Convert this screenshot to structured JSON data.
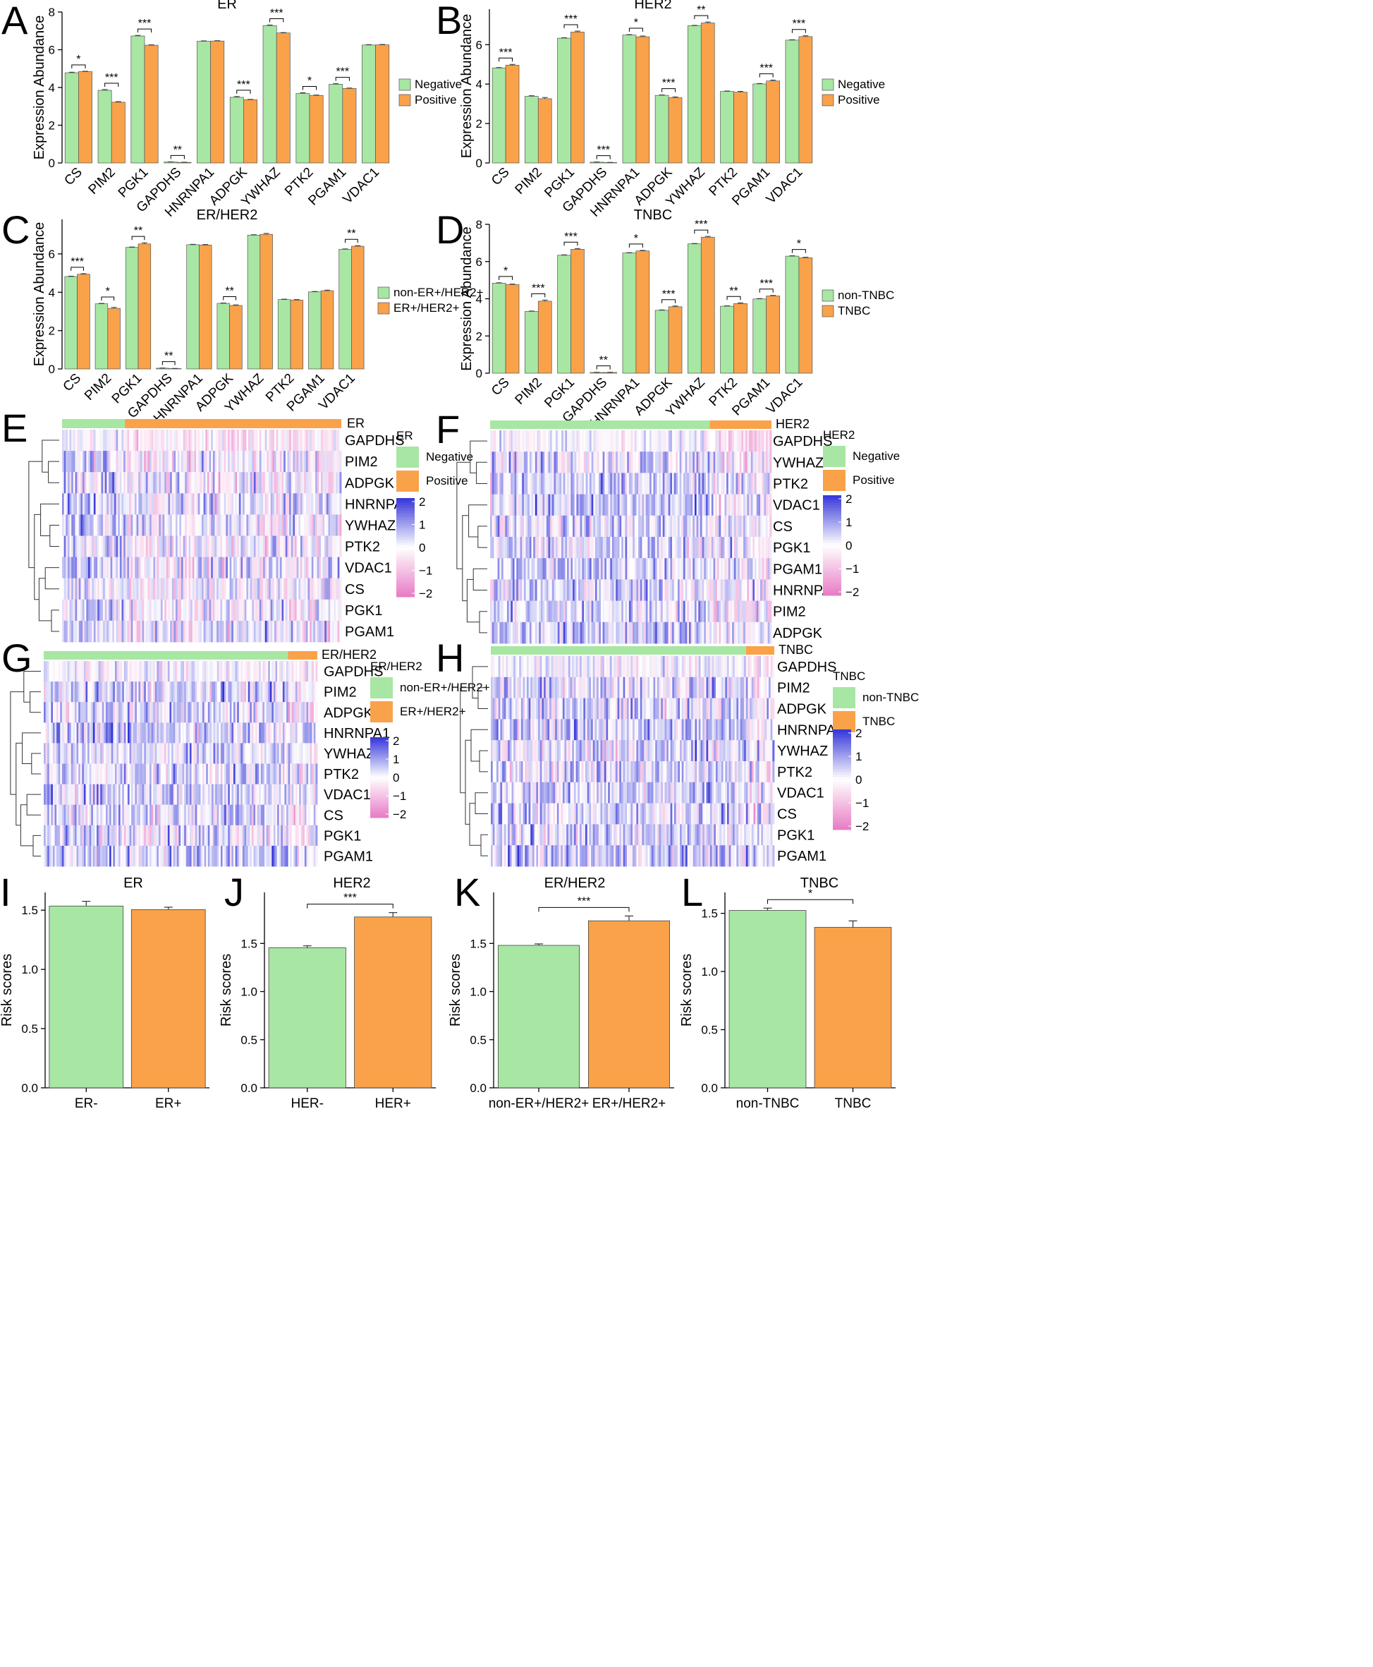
{
  "colors": {
    "negative": "#a8e6a3",
    "positive": "#f9a24a",
    "heat_high": "#3434d9",
    "heat_mid": "#ffffff",
    "heat_low": "#e77bc5",
    "axis": "#000000"
  },
  "genes": [
    "CS",
    "PIM2",
    "PGK1",
    "GAPDHS",
    "HNRNPA1",
    "ADPGK",
    "YWHAZ",
    "PTK2",
    "PGAM1",
    "VDAC1"
  ],
  "chart_data": [
    {
      "id": "A",
      "type": "bar",
      "title": "ER",
      "ylabel": "Expression Abundance",
      "ylim": [
        0,
        8
      ],
      "yticks": [
        0,
        2,
        4,
        6,
        8
      ],
      "categories": [
        "CS",
        "PIM2",
        "PGK1",
        "GAPDHS",
        "HNRNPA1",
        "ADPGK",
        "YWHAZ",
        "PTK2",
        "PGAM1",
        "VDAC1"
      ],
      "series": [
        {
          "name": "Negative",
          "values": [
            4.78,
            3.85,
            6.73,
            0.05,
            6.45,
            3.48,
            7.28,
            3.68,
            4.17,
            6.25
          ],
          "errors": [
            0.03,
            0.04,
            0.03,
            0.01,
            0.02,
            0.04,
            0.03,
            0.04,
            0.03,
            0.02
          ]
        },
        {
          "name": "Positive",
          "values": [
            4.84,
            3.22,
            6.24,
            0.03,
            6.46,
            3.35,
            6.89,
            3.58,
            3.95,
            6.26
          ],
          "errors": [
            0.02,
            0.03,
            0.02,
            0.01,
            0.02,
            0.02,
            0.02,
            0.02,
            0.02,
            0.02
          ]
        }
      ],
      "significance": [
        "*",
        "***",
        "***",
        "**",
        "",
        "***",
        "***",
        "*",
        "***",
        ""
      ],
      "legend": [
        "Negative",
        "Positive"
      ]
    },
    {
      "id": "B",
      "type": "bar",
      "title": "HER2",
      "ylabel": "Expression Abundance",
      "ylim": [
        0,
        7.8
      ],
      "yticks": [
        0,
        2,
        4,
        6
      ],
      "categories": [
        "CS",
        "PIM2",
        "PGK1",
        "GAPDHS",
        "HNRNPA1",
        "ADPGK",
        "YWHAZ",
        "PTK2",
        "PGAM1",
        "VDAC1"
      ],
      "series": [
        {
          "name": "Negative",
          "values": [
            4.82,
            3.38,
            6.33,
            0.04,
            6.49,
            3.43,
            6.96,
            3.63,
            4.01,
            6.23
          ],
          "errors": [
            0.02,
            0.03,
            0.02,
            0.01,
            0.02,
            0.02,
            0.02,
            0.02,
            0.02,
            0.02
          ]
        },
        {
          "name": "Positive",
          "values": [
            4.96,
            3.26,
            6.64,
            0.02,
            6.4,
            3.31,
            7.1,
            3.59,
            4.16,
            6.41
          ],
          "errors": [
            0.04,
            0.06,
            0.05,
            0.01,
            0.04,
            0.04,
            0.05,
            0.04,
            0.04,
            0.04
          ]
        }
      ],
      "significance": [
        "***",
        "",
        "***",
        "***",
        "*",
        "***",
        "**",
        "",
        "***",
        "***"
      ],
      "legend": [
        "Negative",
        "Positive"
      ]
    },
    {
      "id": "C",
      "type": "bar",
      "title": "ER/HER2",
      "ylabel": "Expression Abundance",
      "ylim": [
        0,
        7.8
      ],
      "yticks": [
        0,
        2,
        4,
        6
      ],
      "categories": [
        "CS",
        "PIM2",
        "PGK1",
        "GAPDHS",
        "HNRNPA1",
        "ADPGK",
        "YWHAZ",
        "PTK2",
        "PGAM1",
        "VDAC1"
      ],
      "series": [
        {
          "name": "non-ER+/HER2+",
          "values": [
            4.82,
            3.4,
            6.34,
            0.04,
            6.48,
            3.42,
            6.98,
            3.62,
            4.02,
            6.24
          ],
          "errors": [
            0.02,
            0.02,
            0.02,
            0.01,
            0.02,
            0.02,
            0.02,
            0.02,
            0.02,
            0.02
          ]
        },
        {
          "name": "ER+/HER2+",
          "values": [
            4.94,
            3.16,
            6.52,
            0.02,
            6.46,
            3.31,
            7.02,
            3.59,
            4.08,
            6.4
          ],
          "errors": [
            0.03,
            0.05,
            0.06,
            0.01,
            0.03,
            0.03,
            0.05,
            0.03,
            0.03,
            0.03
          ]
        }
      ],
      "significance": [
        "***",
        "*",
        "**",
        "**",
        "",
        "**",
        "",
        "",
        "",
        "**"
      ],
      "legend": [
        "non-ER+/HER2+",
        "ER+/HER2+"
      ]
    },
    {
      "id": "D",
      "type": "bar",
      "title": "TNBC",
      "ylabel": "Expression Abundance",
      "ylim": [
        0,
        8
      ],
      "yticks": [
        0,
        2,
        4,
        6,
        8
      ],
      "categories": [
        "CS",
        "PIM2",
        "PGK1",
        "GAPDHS",
        "HNRNPA1",
        "ADPGK",
        "YWHAZ",
        "PTK2",
        "PGAM1",
        "VDAC1"
      ],
      "series": [
        {
          "name": "non-TNBC",
          "values": [
            4.84,
            3.32,
            6.34,
            0.04,
            6.46,
            3.38,
            6.95,
            3.6,
            3.99,
            6.29
          ],
          "errors": [
            0.02,
            0.02,
            0.02,
            0.01,
            0.02,
            0.02,
            0.02,
            0.02,
            0.02,
            0.02
          ]
        },
        {
          "name": "TNBC",
          "values": [
            4.76,
            3.87,
            6.66,
            0.04,
            6.57,
            3.57,
            7.31,
            3.74,
            4.15,
            6.2
          ],
          "errors": [
            0.03,
            0.06,
            0.04,
            0.01,
            0.03,
            0.04,
            0.04,
            0.04,
            0.03,
            0.03
          ]
        }
      ],
      "significance": [
        "*",
        "***",
        "***",
        "**",
        "*",
        "***",
        "***",
        "**",
        "***",
        "*"
      ],
      "legend": [
        "non-TNBC",
        "TNBC"
      ]
    },
    {
      "id": "E",
      "type": "heatmap",
      "title": "ER",
      "annotation_label": "ER",
      "legend_title": "ER",
      "groups": [
        "Negative",
        "Positive"
      ],
      "group_split": 0.225,
      "rows": [
        "GAPDHS",
        "PIM2",
        "ADPGK",
        "HNRNPA1",
        "YWHAZ",
        "PTK2",
        "VDAC1",
        "CS",
        "PGK1",
        "PGAM1"
      ],
      "scale_ticks": [
        "2",
        "1",
        "0",
        "−1",
        "−2"
      ]
    },
    {
      "id": "F",
      "type": "heatmap",
      "title": "HER2",
      "annotation_label": "HER2",
      "legend_title": "HER2",
      "groups": [
        "Negative",
        "Positive"
      ],
      "group_split": 0.78,
      "rows": [
        "GAPDHS",
        "YWHAZ",
        "PTK2",
        "VDAC1",
        "CS",
        "PGK1",
        "PGAM1",
        "HNRNPA1",
        "PIM2",
        "ADPGK"
      ],
      "scale_ticks": [
        "2",
        "1",
        "0",
        "−1",
        "−2"
      ]
    },
    {
      "id": "G",
      "type": "heatmap",
      "title": "ER/HER2",
      "annotation_label": "ER/HER2",
      "legend_title": "ER/HER2",
      "groups": [
        "non-ER+/HER2+",
        "ER+/HER2+"
      ],
      "group_split": 0.893,
      "rows": [
        "GAPDHS",
        "PIM2",
        "ADPGK",
        "HNRNPA1",
        "YWHAZ",
        "PTK2",
        "VDAC1",
        "CS",
        "PGK1",
        "PGAM1"
      ],
      "scale_ticks": [
        "2",
        "1",
        "0",
        "−1",
        "−2"
      ]
    },
    {
      "id": "H",
      "type": "heatmap",
      "title": "TNBC",
      "annotation_label": "TNBC",
      "legend_title": "TNBC",
      "groups": [
        "non-TNBC",
        "TNBC"
      ],
      "group_split": 0.9,
      "rows": [
        "GAPDHS",
        "PIM2",
        "ADPGK",
        "HNRNPA1",
        "YWHAZ",
        "PTK2",
        "VDAC1",
        "CS",
        "PGK1",
        "PGAM1"
      ],
      "scale_ticks": [
        "2",
        "1",
        "0",
        "−1",
        "−2"
      ]
    },
    {
      "id": "I",
      "type": "bar",
      "title": "ER",
      "ylabel": "Risk scores",
      "ylim": [
        0,
        1.65
      ],
      "yticks": [
        0.0,
        0.5,
        1.0,
        1.5
      ],
      "tick_decimals": 1,
      "categories": [
        "ER-",
        "ER+"
      ],
      "values": [
        1.535,
        1.505
      ],
      "errors": [
        0.04,
        0.02
      ],
      "significance": ""
    },
    {
      "id": "J",
      "type": "bar",
      "title": "HER2",
      "ylabel": "Risk scores",
      "ylim": [
        0,
        2.03
      ],
      "yticks": [
        0.0,
        0.5,
        1.0,
        1.5
      ],
      "tick_decimals": 1,
      "categories": [
        "HER-",
        "HER+"
      ],
      "values": [
        1.455,
        1.775
      ],
      "errors": [
        0.02,
        0.045
      ],
      "significance": "***"
    },
    {
      "id": "K",
      "type": "bar",
      "title": "ER/HER2",
      "ylabel": "Risk scores",
      "ylim": [
        0,
        2.03
      ],
      "yticks": [
        0.0,
        0.5,
        1.0,
        1.5
      ],
      "tick_decimals": 1,
      "categories": [
        "non-ER+/HER2+",
        "ER+/HER2+"
      ],
      "values": [
        1.48,
        1.735
      ],
      "errors": [
        0.015,
        0.05
      ],
      "significance": "***"
    },
    {
      "id": "L",
      "type": "bar",
      "title": "TNBC",
      "ylabel": "Risk scores",
      "ylim": [
        0,
        1.68
      ],
      "yticks": [
        0.0,
        0.5,
        1.0,
        1.5
      ],
      "tick_decimals": 1,
      "categories": [
        "non-TNBC",
        "TNBC"
      ],
      "values": [
        1.525,
        1.38
      ],
      "errors": [
        0.02,
        0.055
      ],
      "significance": "*"
    }
  ]
}
